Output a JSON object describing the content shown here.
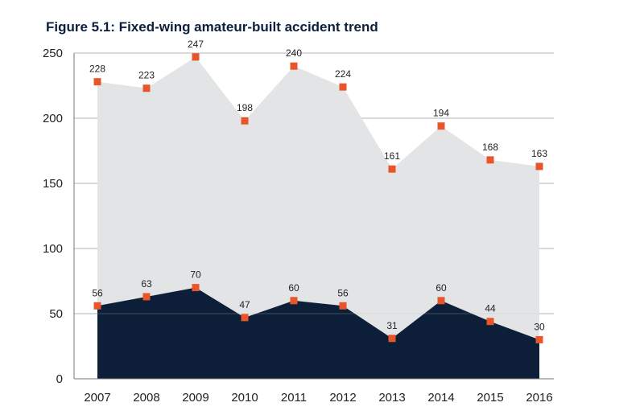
{
  "chart_data": {
    "type": "area",
    "title": "Figure 5.1: Fixed-wing amateur-built accident trend",
    "categories": [
      "2007",
      "2008",
      "2009",
      "2010",
      "2011",
      "2012",
      "2013",
      "2014",
      "2015",
      "2016"
    ],
    "series": [
      {
        "values": [
          228,
          223,
          247,
          198,
          240,
          224,
          161,
          194,
          168,
          163
        ],
        "color": "#e3e4e5"
      },
      {
        "values": [
          56,
          63,
          70,
          47,
          60,
          56,
          31,
          60,
          44,
          30
        ],
        "color": "#0d1f38"
      }
    ],
    "y_ticks": [
      "0",
      "50",
      "100",
      "150",
      "200",
      "250"
    ],
    "ylim": [
      0,
      250
    ],
    "grid": true,
    "marker_color": "#e8552a",
    "legend": "none"
  }
}
